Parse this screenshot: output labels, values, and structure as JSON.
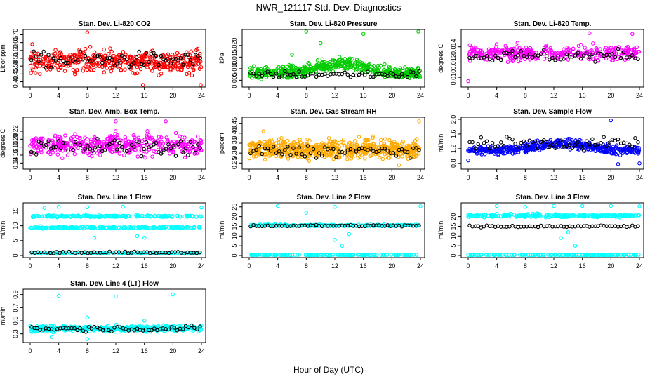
{
  "title": "NWR_121117  Std. Dev. Diagnostics",
  "xlabel": "Hour of Day (UTC)",
  "chart_data": [
    {
      "type": "scatter",
      "title": "Stan. Dev. Li-820 CO2",
      "ylabel": "Licor ppm",
      "xlim": [
        0,
        24
      ],
      "ylim": [
        0.38,
        0.72
      ],
      "yticks": [
        "0.40",
        "0.45",
        "0.50",
        "0.55",
        "0.60",
        "0.65",
        "0.70"
      ],
      "ytick_values": [
        0.4,
        0.45,
        0.5,
        0.55,
        0.6,
        0.65,
        0.7
      ],
      "color": "#ff0000",
      "series": [
        {
          "center": 0.53,
          "spread": 0.07,
          "count": 420
        }
      ],
      "ref_center": 0.54,
      "ref_spread": 0.05,
      "ref_count": 70,
      "outliers": [
        [
          8,
          0.715
        ],
        [
          15.8,
          0.37
        ],
        [
          0.3,
          0.64
        ],
        [
          23.9,
          0.38
        ]
      ]
    },
    {
      "type": "scatter",
      "title": "Stan. Dev. Li-820 Pressure",
      "ylabel": "kPa",
      "xlim": [
        0,
        24
      ],
      "ylim": [
        0.003,
        0.026
      ],
      "yticks": [
        "0.005",
        "0.010",
        "0.015",
        "0.020"
      ],
      "ytick_values": [
        0.005,
        0.01,
        0.015,
        0.02
      ],
      "color": "#00cc00",
      "series": [
        {
          "center": 0.008,
          "spread": 0.0025,
          "count": 500,
          "hump": 0.004
        }
      ],
      "ref_center": 0.0075,
      "ref_spread": 0.0015,
      "ref_count": 60,
      "outliers": [
        [
          8,
          0.026
        ],
        [
          16,
          0.025
        ],
        [
          23.7,
          0.026
        ],
        [
          10,
          0.021
        ],
        [
          6,
          0.016
        ]
      ]
    },
    {
      "type": "scatter",
      "title": "Stan. Dev. Li-820 Temp.",
      "ylabel": "degrees C",
      "xlim": [
        0,
        24
      ],
      "ylim": [
        0.009,
        0.016
      ],
      "yticks": [
        "0.010",
        "0.012",
        "0.014"
      ],
      "ytick_values": [
        0.01,
        0.012,
        0.014
      ],
      "color": "#ff00ff",
      "series": [
        {
          "center": 0.0132,
          "spread": 0.0009,
          "count": 350
        }
      ],
      "ref_center": 0.0128,
      "ref_spread": 0.0008,
      "ref_count": 60,
      "outliers": [
        [
          0,
          0.0095
        ],
        [
          17,
          0.0158
        ],
        [
          23,
          0.0157
        ]
      ]
    },
    {
      "type": "scatter",
      "title": "Stan. Dev. Amb. Box Temp.",
      "ylabel": "degrees C",
      "xlim": [
        0,
        24
      ],
      "ylim": [
        0.13,
        0.25
      ],
      "yticks": [
        "0.14",
        "0.16",
        "0.18",
        "0.20",
        "0.22"
      ],
      "ytick_values": [
        0.14,
        0.16,
        0.18,
        0.2,
        0.22
      ],
      "color": "#ff00ff",
      "series": [
        {
          "center": 0.185,
          "spread": 0.025,
          "count": 420
        }
      ],
      "ref_center": 0.18,
      "ref_spread": 0.02,
      "ref_count": 70,
      "outliers": [
        [
          12,
          0.245
        ],
        [
          19,
          0.245
        ]
      ]
    },
    {
      "type": "scatter",
      "title": "Stan. Dev. Gas Stream RH",
      "ylabel": "percent",
      "xlim": [
        0,
        24
      ],
      "ylim": [
        0.23,
        0.47
      ],
      "yticks": [
        "0.25",
        "0.30",
        "0.35",
        "0.40",
        "0.45"
      ],
      "ytick_values": [
        0.25,
        0.3,
        0.35,
        0.4,
        0.45
      ],
      "color": "#ffaa00",
      "series": [
        {
          "center": 0.32,
          "spread": 0.045,
          "count": 650
        }
      ],
      "ref_center": 0.31,
      "ref_spread": 0.03,
      "ref_count": 60,
      "outliers": [
        [
          2,
          0.41
        ],
        [
          23.8,
          0.46
        ],
        [
          21,
          0.24
        ]
      ]
    },
    {
      "type": "scatter",
      "title": "Stan. Dev. Sample Flow",
      "ylabel": "ml/min",
      "xlim": [
        0,
        24
      ],
      "ylim": [
        0.7,
        2.0
      ],
      "yticks": [
        "0.8",
        "1.2",
        "1.6",
        "2.0"
      ],
      "ytick_values": [
        0.8,
        1.2,
        1.6,
        2.0
      ],
      "color": "#0000ff",
      "series": [
        {
          "center": 1.15,
          "spread": 0.12,
          "count": 450,
          "hump": 0.2
        }
      ],
      "ref_center": 1.35,
      "ref_spread": 0.18,
      "ref_count": 60,
      "outliers": [
        [
          20,
          1.97
        ],
        [
          0,
          0.88
        ],
        [
          24,
          0.8
        ],
        [
          21,
          0.78
        ]
      ]
    },
    {
      "type": "scatter",
      "title": "Stan. Dev. Line 1 Flow",
      "ylabel": "ml/min",
      "xlim": [
        0,
        24
      ],
      "ylim": [
        0,
        17
      ],
      "yticks": [
        "0",
        "5",
        "10",
        "15"
      ],
      "ytick_values": [
        0,
        5,
        10,
        15
      ],
      "color": "#00ffff",
      "series": [
        {
          "center": 13.2,
          "spread": 0.3,
          "count": 200
        },
        {
          "center": 9.4,
          "spread": 0.3,
          "count": 200
        },
        {
          "center": 0.7,
          "spread": 0.1,
          "count": 120
        }
      ],
      "ref_center": 1.0,
      "ref_spread": 0.3,
      "ref_count": 55,
      "outliers": [
        [
          4,
          16.4
        ],
        [
          8,
          16.2
        ],
        [
          13,
          16.4
        ],
        [
          24,
          16.1
        ],
        [
          2,
          16
        ],
        [
          9,
          6
        ],
        [
          15,
          6.5
        ],
        [
          16,
          6
        ]
      ]
    },
    {
      "type": "scatter",
      "title": "Stan. Dev. Line 2 Flow",
      "ylabel": "ml/min",
      "xlim": [
        0,
        24
      ],
      "ylim": [
        0,
        26
      ],
      "yticks": [
        "0",
        "5",
        "10",
        "15",
        "20",
        "25"
      ],
      "ytick_values": [
        0,
        5,
        10,
        15,
        20,
        25
      ],
      "color": "#00ffff",
      "series": [
        {
          "center": 15.5,
          "spread": 0.5,
          "count": 200
        },
        {
          "center": 0.3,
          "spread": 0.1,
          "count": 150
        }
      ],
      "ref_center": 15.3,
      "ref_spread": 0.4,
      "ref_count": 60,
      "outliers": [
        [
          4,
          25.5
        ],
        [
          12,
          25
        ],
        [
          24,
          25.3
        ],
        [
          8,
          22
        ],
        [
          12,
          8
        ],
        [
          14,
          11
        ],
        [
          13,
          5
        ]
      ]
    },
    {
      "type": "scatter",
      "title": "Stan. Dev. Line 3 Flow",
      "ylabel": "ml/min",
      "xlim": [
        0,
        24
      ],
      "ylim": [
        0,
        26
      ],
      "yticks": [
        "0",
        "5",
        "10",
        "15",
        "20"
      ],
      "ytick_values": [
        0,
        5,
        10,
        15,
        20
      ],
      "color": "#00ffff",
      "series": [
        {
          "center": 20.5,
          "spread": 0.8,
          "count": 250
        },
        {
          "center": 0.3,
          "spread": 0.1,
          "count": 150
        }
      ],
      "ref_center": 15.0,
      "ref_spread": 0.5,
      "ref_count": 60,
      "outliers": [
        [
          4,
          25.5
        ],
        [
          8,
          25
        ],
        [
          12,
          25.5
        ],
        [
          16,
          25.5
        ],
        [
          20,
          25.5
        ],
        [
          24,
          25.3
        ],
        [
          13,
          9
        ],
        [
          14,
          12
        ],
        [
          15,
          5
        ]
      ]
    },
    {
      "type": "scatter",
      "title": "Stan. Dev. Line 4 (LT) Flow",
      "ylabel": "ml/min",
      "xlim": [
        0,
        24
      ],
      "ylim": [
        0.2,
        0.95
      ],
      "yticks": [
        "0.3",
        "0.5",
        "0.7",
        "0.9"
      ],
      "ytick_values": [
        0.3,
        0.5,
        0.7,
        0.9
      ],
      "color": "#00ffff",
      "series": [
        {
          "center": 0.38,
          "spread": 0.045,
          "count": 420
        }
      ],
      "ref_center": 0.38,
      "ref_spread": 0.04,
      "ref_count": 60,
      "outliers": [
        [
          4,
          0.88
        ],
        [
          12,
          0.87
        ],
        [
          20,
          0.9
        ],
        [
          8,
          0.55
        ],
        [
          16,
          0.5
        ],
        [
          3,
          0.25
        ],
        [
          8,
          0.22
        ]
      ]
    }
  ],
  "xticks": [
    "0",
    "4",
    "8",
    "12",
    "16",
    "20",
    "24"
  ],
  "xtick_values": [
    0,
    4,
    8,
    12,
    16,
    20,
    24
  ],
  "ref_color": "#000000"
}
